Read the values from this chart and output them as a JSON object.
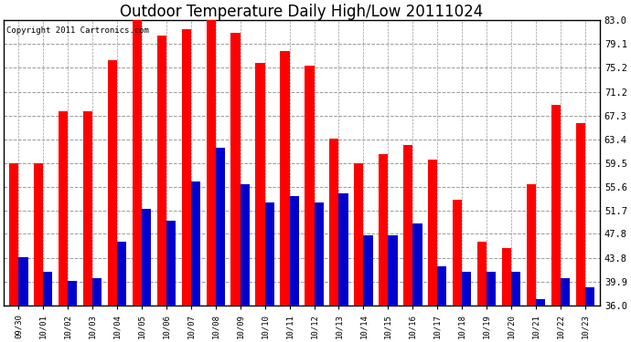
{
  "title": "Outdoor Temperature Daily High/Low 20111024",
  "copyright": "Copyright 2011 Cartronics.com",
  "dates": [
    "09/30",
    "10/01",
    "10/02",
    "10/03",
    "10/04",
    "10/05",
    "10/06",
    "10/07",
    "10/08",
    "10/09",
    "10/10",
    "10/11",
    "10/12",
    "10/13",
    "10/14",
    "10/15",
    "10/16",
    "10/17",
    "10/18",
    "10/19",
    "10/20",
    "10/21",
    "10/22",
    "10/23"
  ],
  "highs": [
    59.5,
    59.5,
    68.0,
    68.0,
    76.5,
    83.0,
    80.5,
    81.5,
    83.0,
    81.0,
    76.0,
    78.0,
    75.5,
    63.5,
    59.5,
    61.0,
    62.5,
    60.0,
    53.5,
    46.5,
    45.5,
    56.0,
    69.0,
    66.0
  ],
  "lows": [
    44.0,
    41.5,
    40.0,
    40.5,
    46.5,
    52.0,
    50.0,
    56.5,
    62.0,
    56.0,
    53.0,
    54.0,
    53.0,
    54.5,
    47.5,
    47.5,
    49.5,
    42.5,
    41.5,
    41.5,
    41.5,
    37.0,
    40.5,
    39.0
  ],
  "high_color": "#ff0000",
  "low_color": "#0000cc",
  "background_color": "#ffffff",
  "grid_color": "#999999",
  "yticks": [
    36.0,
    39.9,
    43.8,
    47.8,
    51.7,
    55.6,
    59.5,
    63.4,
    67.3,
    71.2,
    75.2,
    79.1,
    83.0
  ],
  "ylim": [
    36.0,
    83.0
  ],
  "ybase": 36.0,
  "title_fontsize": 12,
  "copyright_fontsize": 6.5
}
